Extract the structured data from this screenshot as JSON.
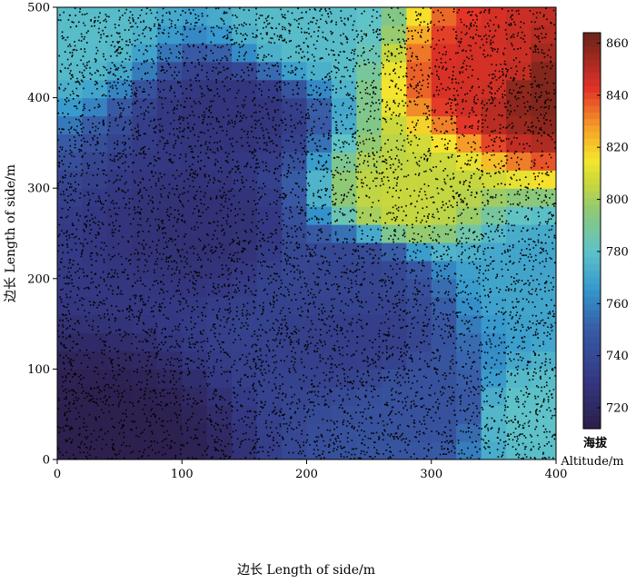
{
  "chart_data": {
    "type": "heatmap",
    "title": "",
    "xlabel": "边长 Length of side/m",
    "ylabel": "边长 Length of side/m",
    "xlim": [
      0,
      400
    ],
    "ylim": [
      0,
      500
    ],
    "x_ticks": [
      "0",
      "100",
      "200",
      "300",
      "400"
    ],
    "y_ticks": [
      "0",
      "100",
      "200",
      "300",
      "400",
      "500"
    ],
    "colorbar": {
      "label_line1": "海拔",
      "label_line2": "Altitude/m",
      "range": [
        712,
        864
      ],
      "ticks": [
        "720",
        "740",
        "760",
        "780",
        "800",
        "820",
        "840",
        "860"
      ],
      "colormap": "jet"
    },
    "grid_cell_size_m": 20,
    "altitude_control_points": [
      {
        "x": 40,
        "y": 20,
        "altitude": 714
      },
      {
        "x": 120,
        "y": 260,
        "altitude": 726
      },
      {
        "x": 140,
        "y": 380,
        "altitude": 728
      },
      {
        "x": 240,
        "y": 140,
        "altitude": 734
      },
      {
        "x": 240,
        "y": 200,
        "altitude": 738
      },
      {
        "x": 10,
        "y": 480,
        "altitude": 778
      },
      {
        "x": 200,
        "y": 480,
        "altitude": 778
      },
      {
        "x": 280,
        "y": 290,
        "altitude": 806
      },
      {
        "x": 380,
        "y": 200,
        "altitude": 770
      },
      {
        "x": 380,
        "y": 50,
        "altitude": 780
      },
      {
        "x": 350,
        "y": 430,
        "altitude": 845
      },
      {
        "x": 390,
        "y": 410,
        "altitude": 860
      },
      {
        "x": 300,
        "y": 60,
        "altitude": 745
      }
    ],
    "scatter_points": "black dots (tree positions) scattered densely over the whole plot"
  }
}
